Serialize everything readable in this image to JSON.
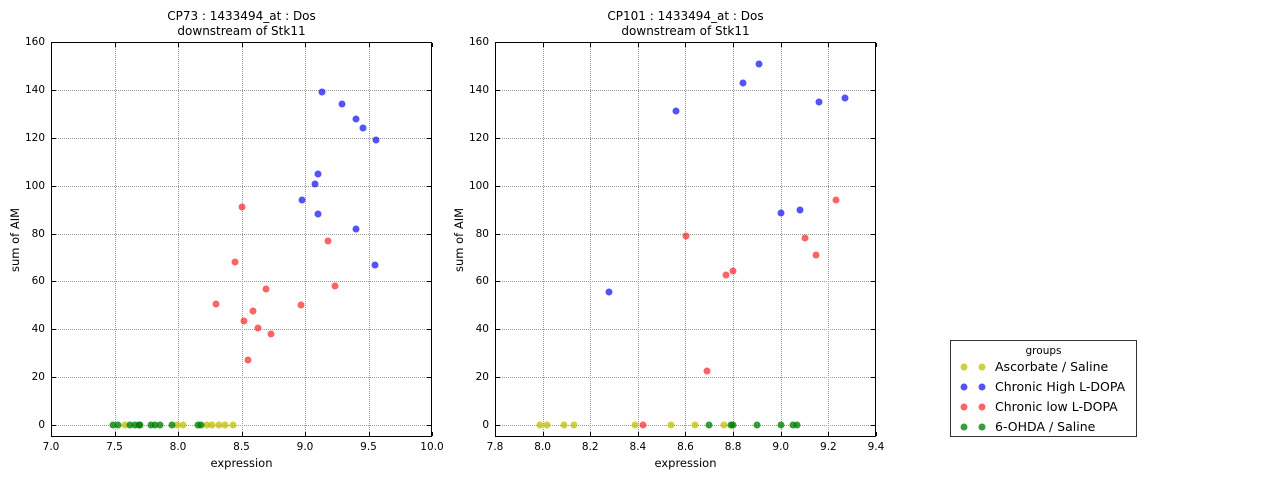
{
  "colors": {
    "yellow": "rgba(191,191,0,0.75)",
    "blue": "rgba(10,10,245,0.70)",
    "red": "rgba(250,40,40,0.72)",
    "green": "rgba(0,128,0,0.78)"
  },
  "legend": {
    "title": "groups",
    "entries": [
      {
        "label": "Ascorbate / Saline",
        "color": "yellow"
      },
      {
        "label": "Chronic High L-DOPA",
        "color": "blue"
      },
      {
        "label": "Chronic low L-DOPA",
        "color": "red"
      },
      {
        "label": "6-OHDA / Saline",
        "color": "green"
      }
    ]
  },
  "chart_data": [
    {
      "type": "scatter",
      "title_lines": [
        "CP73 : 1433494_at : Dos",
        "downstream of Stk11"
      ],
      "xlabel": "expression",
      "ylabel": "sum of AIM",
      "xlim": [
        7.0,
        10.0
      ],
      "ylim": [
        -5,
        160
      ],
      "xticks": [
        7.0,
        7.5,
        8.0,
        8.5,
        9.0,
        9.5,
        10.0
      ],
      "xtick_labels": [
        "7.0",
        "7.5",
        "8.0",
        "8.5",
        "9.0",
        "9.5",
        "10.0"
      ],
      "yticks": [
        0,
        20,
        40,
        60,
        80,
        100,
        120,
        140,
        160
      ],
      "ytick_labels": [
        "0",
        "20",
        "40",
        "60",
        "80",
        "100",
        "120",
        "140",
        "160"
      ],
      "grid": true,
      "series": [
        {
          "name": "Ascorbate / Saline",
          "color": "yellow",
          "points": [
            [
              7.58,
              0
            ],
            [
              7.99,
              0
            ],
            [
              8.04,
              0
            ],
            [
              8.23,
              0
            ],
            [
              8.27,
              0
            ],
            [
              8.32,
              0
            ],
            [
              8.37,
              0
            ],
            [
              8.43,
              0
            ]
          ]
        },
        {
          "name": "Chronic High L-DOPA",
          "color": "blue",
          "points": [
            [
              8.98,
              94
            ],
            [
              9.08,
              100.5
            ],
            [
              9.1,
              105
            ],
            [
              9.1,
              88
            ],
            [
              9.13,
              139
            ],
            [
              9.29,
              134
            ],
            [
              9.4,
              128
            ],
            [
              9.4,
              82
            ],
            [
              9.46,
              124
            ],
            [
              9.55,
              67
            ],
            [
              9.56,
              119
            ]
          ]
        },
        {
          "name": "Chronic low L-DOPA",
          "color": "red",
          "points": [
            [
              8.3,
              50.5
            ],
            [
              8.45,
              68
            ],
            [
              8.5,
              91
            ],
            [
              8.52,
              43.5
            ],
            [
              8.55,
              27
            ],
            [
              8.59,
              47.5
            ],
            [
              8.63,
              40.5
            ],
            [
              8.69,
              57
            ],
            [
              8.73,
              38
            ],
            [
              8.97,
              50
            ],
            [
              9.18,
              77
            ],
            [
              9.24,
              58
            ]
          ]
        },
        {
          "name": "6-OHDA / Saline",
          "color": "green",
          "points": [
            [
              7.49,
              0
            ],
            [
              7.53,
              0
            ],
            [
              7.62,
              0
            ],
            [
              7.66,
              0
            ],
            [
              7.69,
              0
            ],
            [
              7.7,
              0
            ],
            [
              7.79,
              0
            ],
            [
              7.82,
              0
            ],
            [
              7.86,
              0
            ],
            [
              7.95,
              0
            ],
            [
              8.16,
              0
            ],
            [
              8.18,
              0
            ]
          ]
        }
      ]
    },
    {
      "type": "scatter",
      "title_lines": [
        "CP101 : 1433494_at : Dos",
        "downstream of Stk11"
      ],
      "xlabel": "expression",
      "ylabel": "sum of AIM",
      "xlim": [
        7.8,
        9.4
      ],
      "ylim": [
        -5,
        160
      ],
      "xticks": [
        7.8,
        8.0,
        8.2,
        8.4,
        8.6,
        8.8,
        9.0,
        9.2,
        9.4
      ],
      "xtick_labels": [
        "7.8",
        "8.0",
        "8.2",
        "8.4",
        "8.6",
        "8.8",
        "9.0",
        "9.2",
        "9.4"
      ],
      "yticks": [
        0,
        20,
        40,
        60,
        80,
        100,
        120,
        140,
        160
      ],
      "ytick_labels": [
        "0",
        "20",
        "40",
        "60",
        "80",
        "100",
        "120",
        "140",
        "160"
      ],
      "grid": true,
      "series": [
        {
          "name": "Ascorbate / Saline",
          "color": "yellow",
          "points": [
            [
              7.99,
              0
            ],
            [
              8.02,
              0
            ],
            [
              8.09,
              0
            ],
            [
              8.13,
              0
            ],
            [
              8.39,
              0
            ],
            [
              8.54,
              0
            ],
            [
              8.64,
              0
            ],
            [
              8.76,
              0
            ]
          ]
        },
        {
          "name": "Chronic High L-DOPA",
          "color": "blue",
          "points": [
            [
              8.28,
              55.5
            ],
            [
              8.56,
              131
            ],
            [
              8.84,
              143
            ],
            [
              8.91,
              151
            ],
            [
              9.0,
              88.5
            ],
            [
              9.08,
              90
            ],
            [
              9.16,
              135
            ],
            [
              9.27,
              136.5
            ]
          ]
        },
        {
          "name": "Chronic low L-DOPA",
          "color": "red",
          "points": [
            [
              8.42,
              0
            ],
            [
              8.6,
              79
            ],
            [
              8.69,
              22.5
            ],
            [
              8.77,
              62.5
            ],
            [
              8.8,
              64.5
            ],
            [
              9.1,
              78
            ],
            [
              9.15,
              71
            ],
            [
              9.23,
              94
            ]
          ]
        },
        {
          "name": "6-OHDA / Saline",
          "color": "green",
          "points": [
            [
              8.7,
              0
            ],
            [
              8.79,
              0
            ],
            [
              8.8,
              0
            ],
            [
              8.9,
              0
            ],
            [
              9.0,
              0
            ],
            [
              9.05,
              0
            ],
            [
              9.07,
              0
            ]
          ]
        }
      ]
    }
  ]
}
